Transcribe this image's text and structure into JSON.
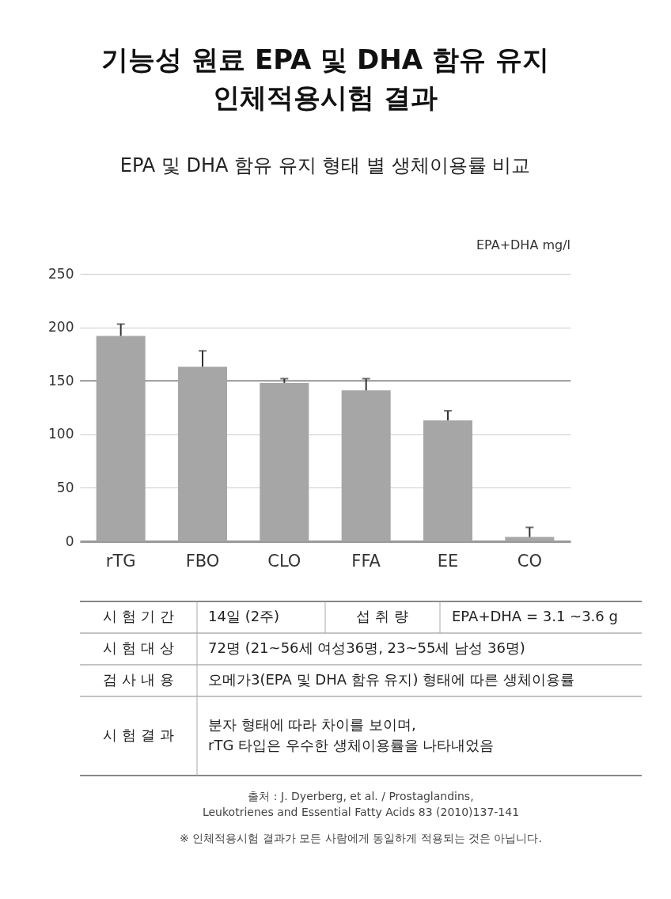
{
  "chart_data": {
    "type": "bar",
    "title": "기능성 원료 EPA 및 DHA 함유 유지\n인체적용시험 결과",
    "subtitle": "EPA 및 DHA 함유 유지 형태 별 생체이용률 비교",
    "ylabel": "EPA+DHA  mg/l",
    "categories": [
      "rTG",
      "FBO",
      "CLO",
      "FFA",
      "EE",
      "CO"
    ],
    "values": [
      192,
      163,
      148,
      141,
      113,
      4
    ],
    "errors": [
      [
        192,
        203
      ],
      [
        163,
        178
      ],
      [
        148,
        152
      ],
      [
        141,
        152
      ],
      [
        113,
        122
      ],
      [
        4,
        13
      ]
    ],
    "color": "#a6a6a6",
    "ylim": [
      0,
      250
    ],
    "yticks": [
      0,
      50,
      100,
      150,
      200,
      250
    ],
    "grid": "y",
    "ref_lines": [
      {
        "axis": "y",
        "value": 150,
        "color": "#777777"
      }
    ],
    "annotations": [
      "시 험 기 간",
      "14일 (2주)",
      "섭  취  량",
      "EPA+DHA = 3.1 ~3.6 g",
      "시 험 대 상",
      "72명 (21~56세 여성36명, 23~55세 남성 36명)",
      "검 사 내 용",
      "오메가3(EPA 및 DHA 함유 유지) 형태에 따른 생체이용률",
      "시 험 결 과",
      "분자 형태에 따라 차이를 보이며,\nrTG 타입은 우수한 생체이용률을 나타내었음",
      "출처 : J. Dyerberg, et al. / Prostaglandins,\nLeukotrienes and Essential Fatty Acids 83 (2010)137-141",
      "※ 인체적용시험 결과가 모든 사람에게 동일하게 적용되는 것은 아닙니다."
    ]
  }
}
